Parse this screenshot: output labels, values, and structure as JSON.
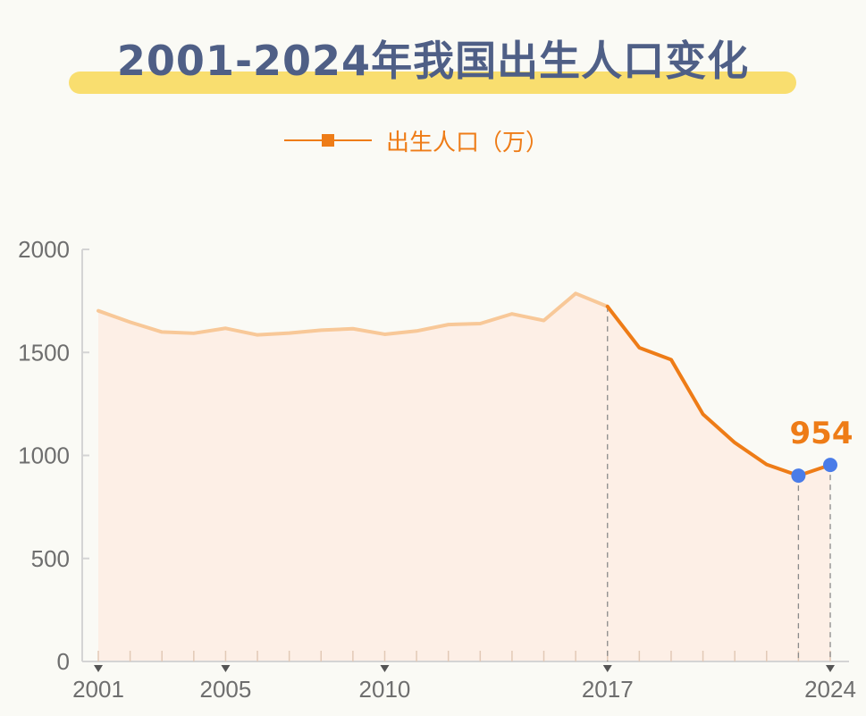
{
  "header": {
    "title": "2001-2024年我国出生人口变化"
  },
  "chart_data": {
    "type": "line",
    "title": "2001-2024年我国出生人口变化",
    "xlabel": "",
    "ylabel": "",
    "ylim": [
      0,
      2000
    ],
    "yticks": [
      "0",
      "500",
      "1000",
      "1500",
      "2000"
    ],
    "xticks": [
      "2001",
      "2005",
      "2010",
      "2017",
      "2024"
    ],
    "x": [
      2001,
      2002,
      2003,
      2004,
      2005,
      2006,
      2007,
      2008,
      2009,
      2010,
      2011,
      2012,
      2013,
      2014,
      2015,
      2016,
      2017,
      2018,
      2019,
      2020,
      2021,
      2022,
      2023,
      2024
    ],
    "series": [
      {
        "name": "出生人口（万）",
        "values": [
          1702,
          1647,
          1599,
          1593,
          1617,
          1585,
          1594,
          1608,
          1615,
          1588,
          1604,
          1635,
          1640,
          1687,
          1655,
          1786,
          1723,
          1523,
          1465,
          1200,
          1062,
          956,
          902,
          954
        ]
      }
    ],
    "annotation": {
      "year": 2024,
      "value_label": "954"
    },
    "highlight_from_year": 2017,
    "grid": false,
    "legend_position": "top-center",
    "colors": {
      "line_dark": "#ee7c17",
      "line_light": "#f8c898",
      "fill": "#fdefe6",
      "marker": "#4a7ce8"
    }
  }
}
